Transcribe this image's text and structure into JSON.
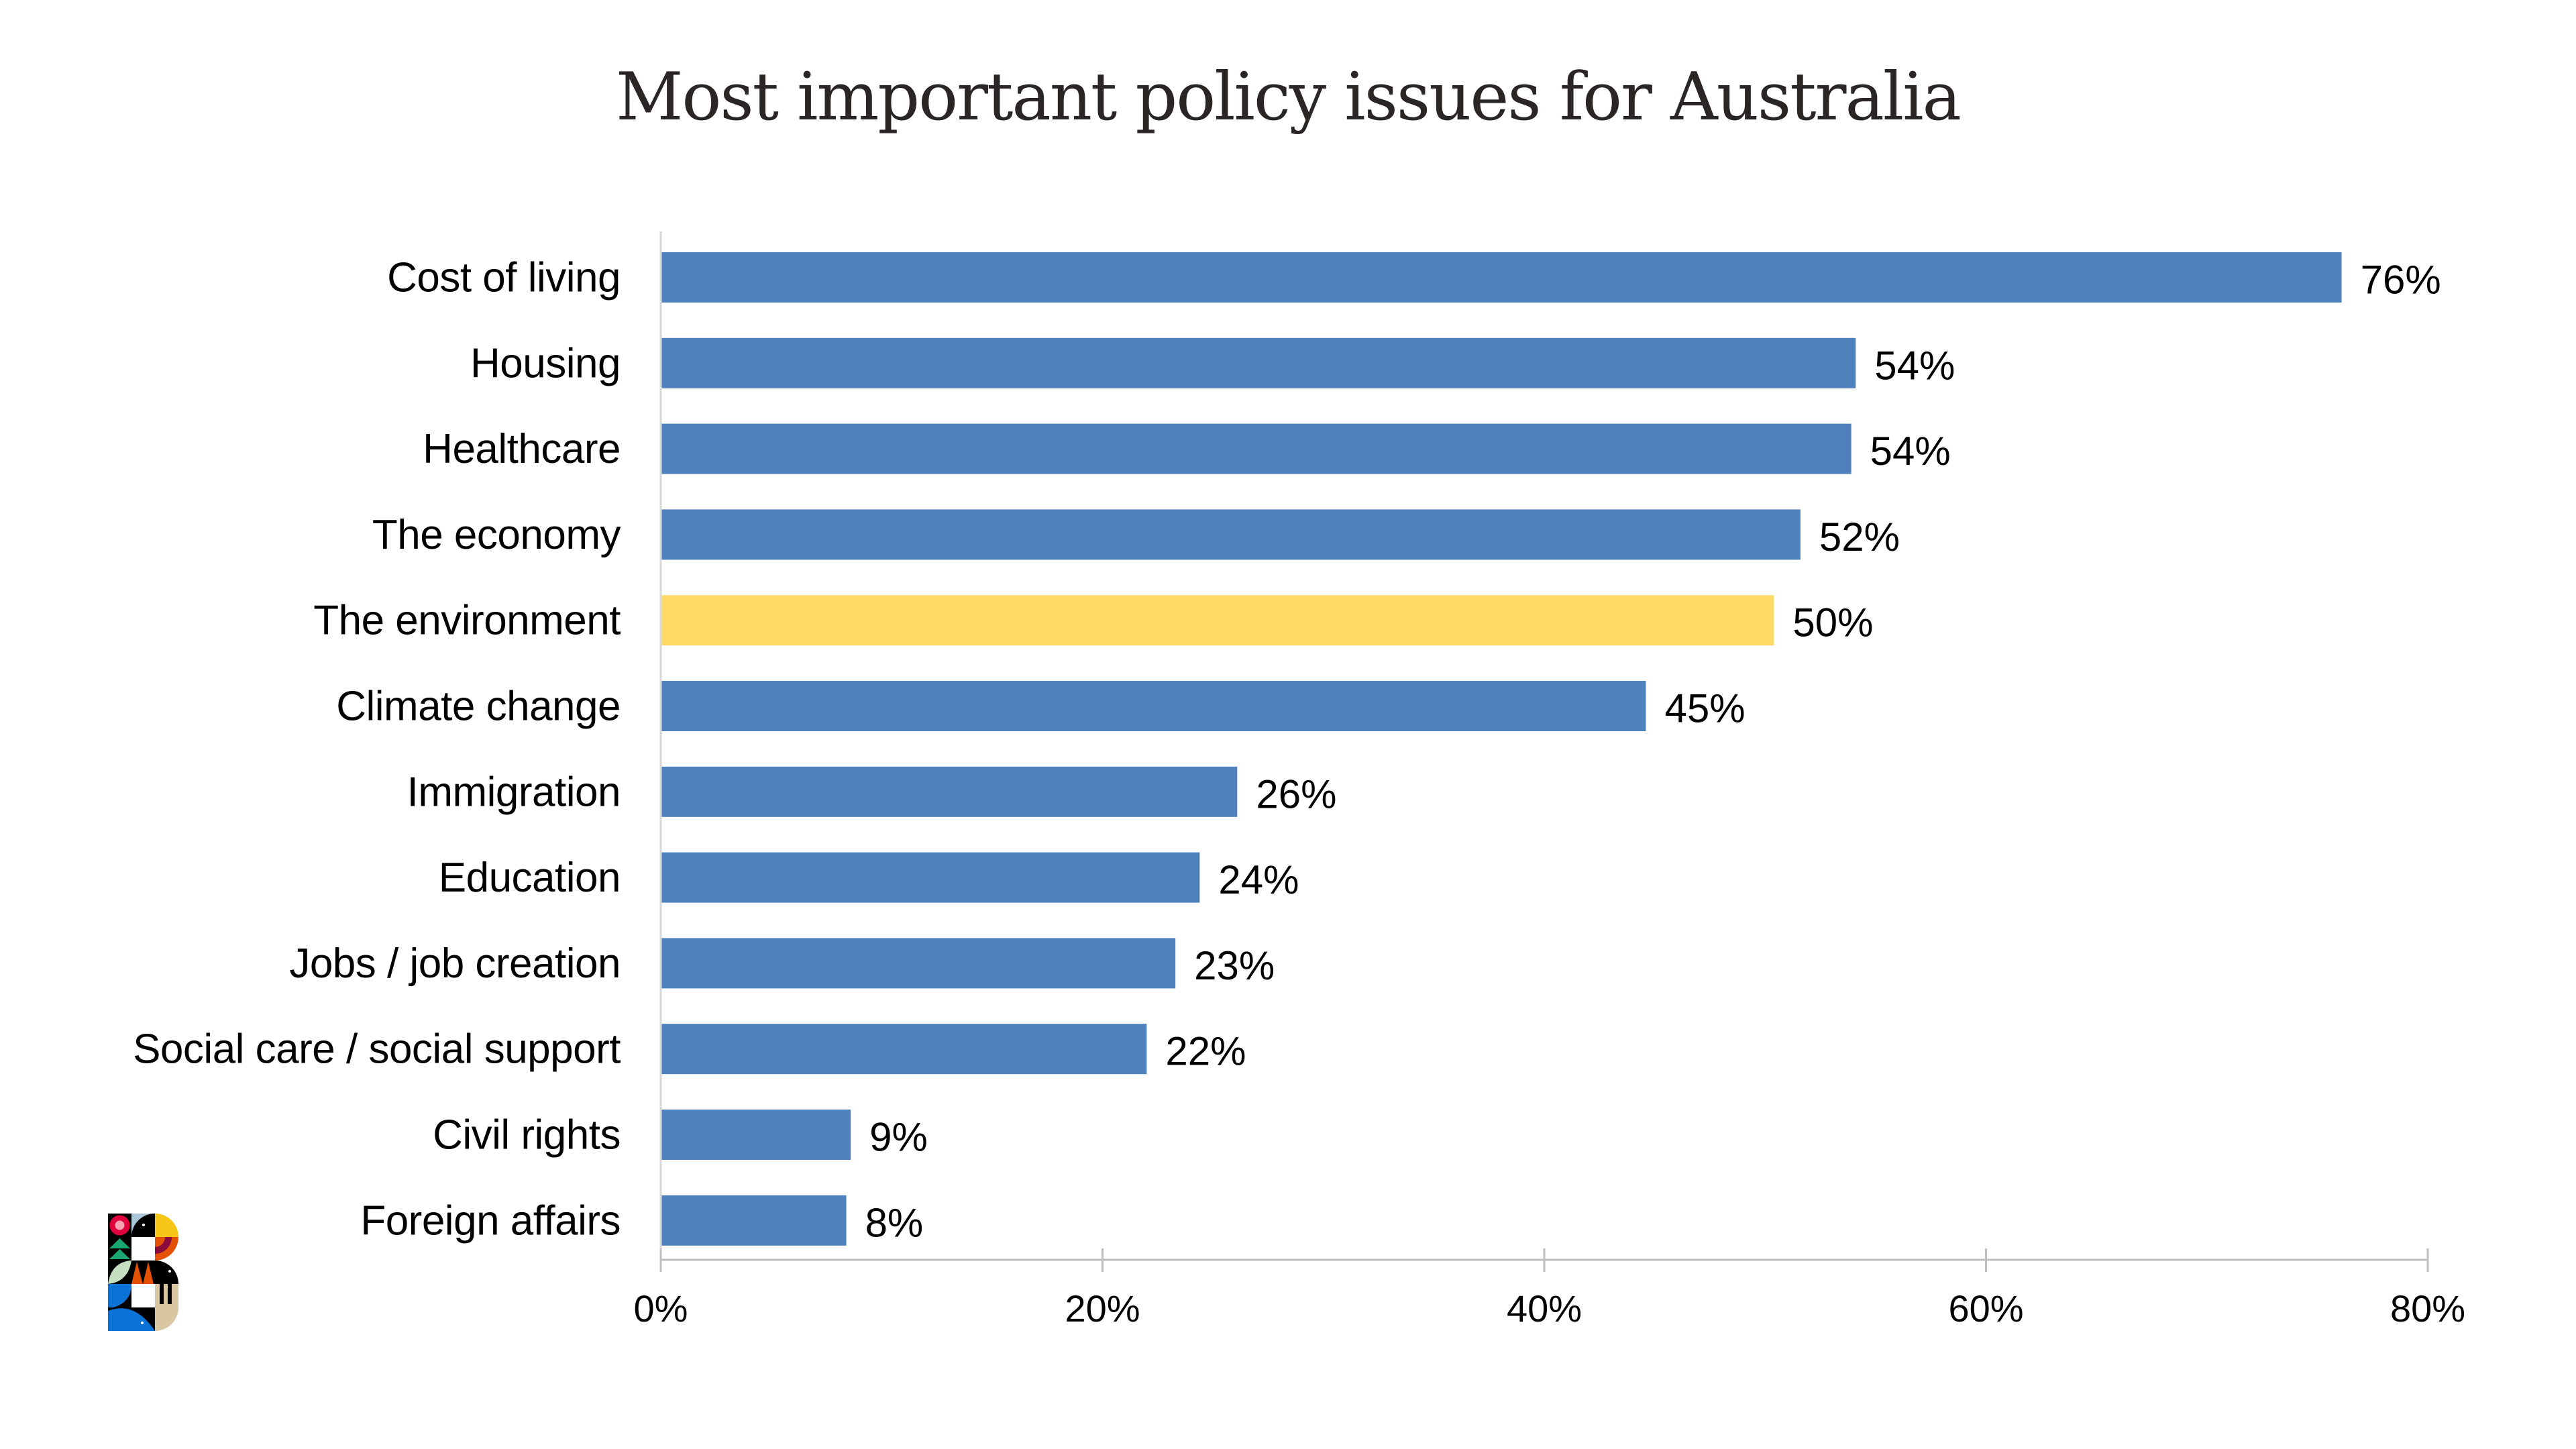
{
  "chart_data": {
    "type": "bar",
    "orientation": "horizontal",
    "title": "Most important policy issues for Australia",
    "xlabel": "",
    "ylabel": "",
    "xlim": [
      0,
      80
    ],
    "grid": false,
    "legend": "none",
    "x_ticks": [
      0,
      20,
      40,
      60,
      80
    ],
    "x_tick_labels": [
      "0%",
      "20%",
      "40%",
      "60%",
      "80%"
    ],
    "categories": [
      "Cost of living",
      "Housing",
      "Healthcare",
      "The economy",
      "The environment",
      "Climate change",
      "Immigration",
      "Education",
      "Jobs / job creation",
      "Social care / social support",
      "Civil rights",
      "Foreign affairs"
    ],
    "values": [
      76.1,
      54.1,
      53.9,
      51.6,
      50.4,
      44.6,
      26.1,
      24.4,
      23.3,
      22.0,
      8.6,
      8.4
    ],
    "data_labels": [
      "76%",
      "54%",
      "54%",
      "52%",
      "50%",
      "45%",
      "26%",
      "24%",
      "23%",
      "22%",
      "9%",
      "8%"
    ],
    "highlight_index": 4,
    "colors": {
      "bar": "#4f81bd",
      "highlight": "#ffd966",
      "axis": "#bfbfbf",
      "text": "#000000"
    }
  },
  "logo": {
    "name": "brand-b-logo"
  }
}
